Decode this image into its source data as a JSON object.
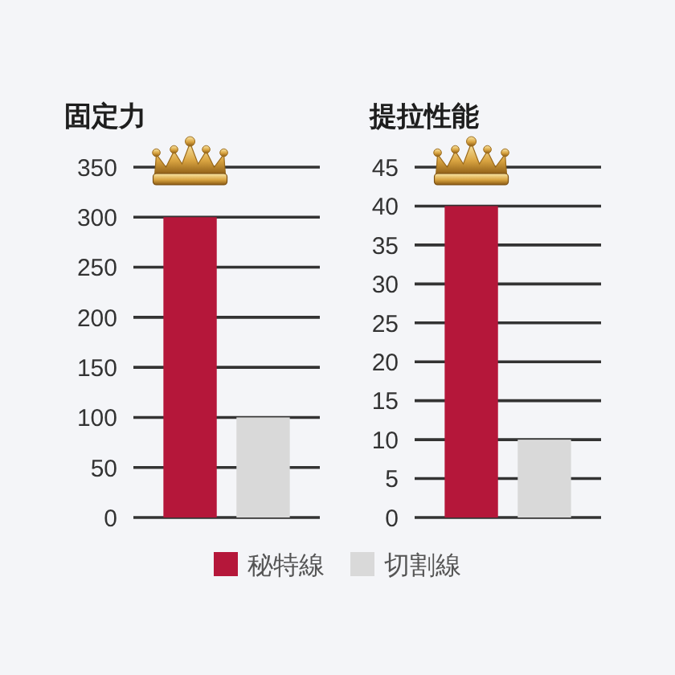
{
  "chart_data": [
    {
      "type": "bar",
      "title": "固定力",
      "categories": [
        null
      ],
      "series": [
        {
          "name": "秘特線",
          "color": "#b5173a",
          "values": [
            300
          ]
        },
        {
          "name": "切割線",
          "color": "#d9d9d9",
          "values": [
            100
          ]
        }
      ],
      "ylim": [
        0,
        350
      ],
      "yticks": [
        0,
        50,
        100,
        150,
        200,
        250,
        300,
        350
      ],
      "grid": "y",
      "legend": "bottom"
    },
    {
      "type": "bar",
      "title": "提拉性能",
      "categories": [
        null
      ],
      "series": [
        {
          "color": "#b5173a",
          "values": [
            40
          ]
        },
        {
          "color": "#d9d9d9",
          "values": [
            10
          ]
        }
      ],
      "ylim": [
        0,
        45
      ],
      "yticks": [
        0,
        5,
        10,
        15,
        20,
        25,
        30,
        35,
        40,
        45
      ],
      "grid": "y"
    }
  ]
}
